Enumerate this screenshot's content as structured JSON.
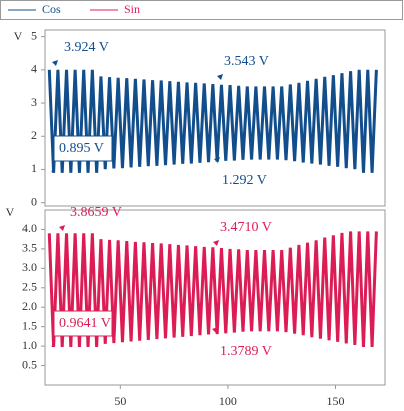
{
  "chart_data": [
    {
      "type": "line",
      "ylabel": "V",
      "xlim": [
        15,
        173
      ],
      "ylim": [
        -0.1,
        5.2
      ],
      "yticks": [
        0,
        1,
        2,
        3,
        4,
        5
      ],
      "x": [
        17,
        19,
        21,
        23,
        25,
        27,
        29,
        31,
        33,
        35,
        37,
        39,
        41,
        43,
        45,
        47,
        49,
        51,
        53,
        55,
        57,
        59,
        61,
        63,
        65,
        67,
        69,
        71,
        73,
        75,
        77,
        79,
        81,
        83,
        85,
        87,
        89,
        91,
        93,
        95,
        97,
        99,
        101,
        103,
        105,
        107,
        109,
        111,
        113,
        115,
        117,
        119,
        121,
        123,
        125,
        127,
        129,
        131,
        133,
        135,
        137,
        139,
        141,
        143,
        145,
        147,
        149,
        151,
        153,
        155,
        157,
        159,
        161,
        163,
        165,
        167,
        169
      ],
      "series": [
        {
          "name": "Cos",
          "color": "#124e8c",
          "values": [
            4.0,
            0.9,
            4.0,
            0.9,
            4.0,
            0.9,
            4.0,
            0.9,
            4.0,
            0.9,
            4.0,
            0.9,
            3.8,
            1.01,
            3.78,
            1.03,
            3.76,
            1.04,
            3.75,
            1.06,
            3.73,
            1.08,
            3.71,
            1.1,
            3.69,
            1.11,
            3.68,
            1.13,
            3.66,
            1.15,
            3.64,
            1.17,
            3.62,
            1.18,
            3.61,
            1.2,
            3.59,
            1.22,
            3.57,
            1.24,
            3.55,
            1.26,
            3.54,
            1.27,
            3.52,
            1.29,
            3.5,
            1.3,
            3.5,
            1.3,
            3.5,
            1.3,
            3.5,
            1.3,
            3.5,
            1.28,
            3.56,
            1.25,
            3.61,
            1.21,
            3.67,
            1.18,
            3.73,
            1.15,
            3.79,
            1.11,
            3.84,
            1.08,
            3.9,
            1.04,
            3.96,
            1.01,
            4.0,
            0.9,
            4.0,
            0.9,
            4.0
          ]
        }
      ],
      "annotations": [
        {
          "text": "3.924 V"
        },
        {
          "text": "3.543 V"
        },
        {
          "text": "1.292 V"
        },
        {
          "text": "0.895 V",
          "boxed": true
        }
      ]
    },
    {
      "type": "line",
      "ylabel": "V",
      "xlim": [
        15,
        173
      ],
      "ylim": [
        0,
        4.5
      ],
      "xticks": [
        50,
        100,
        150
      ],
      "yticks": [
        0.5,
        {
          "value": 1,
          "label": "1.0"
        },
        1.5,
        {
          "value": 2,
          "label": "2.0"
        },
        2.5,
        {
          "value": 3,
          "label": "3.0"
        },
        3.5,
        {
          "value": 4,
          "label": "4.0"
        }
      ],
      "x": [
        17,
        19,
        21,
        23,
        25,
        27,
        29,
        31,
        33,
        35,
        37,
        39,
        41,
        43,
        45,
        47,
        49,
        51,
        53,
        55,
        57,
        59,
        61,
        63,
        65,
        67,
        69,
        71,
        73,
        75,
        77,
        79,
        81,
        83,
        85,
        87,
        89,
        91,
        93,
        95,
        97,
        99,
        101,
        103,
        105,
        107,
        109,
        111,
        113,
        115,
        117,
        119,
        121,
        123,
        125,
        127,
        129,
        131,
        133,
        135,
        137,
        139,
        141,
        143,
        145,
        147,
        149,
        151,
        153,
        155,
        157,
        159,
        161,
        163,
        165,
        167,
        169
      ],
      "series": [
        {
          "name": "Sin",
          "color": "#dc1d55",
          "values": [
            3.9,
            0.98,
            3.9,
            0.98,
            3.9,
            0.98,
            3.9,
            0.98,
            3.9,
            0.98,
            3.9,
            0.98,
            3.75,
            1.06,
            3.73,
            1.08,
            3.72,
            1.1,
            3.7,
            1.12,
            3.68,
            1.14,
            3.67,
            1.16,
            3.65,
            1.18,
            3.64,
            1.2,
            3.62,
            1.22,
            3.6,
            1.24,
            3.59,
            1.26,
            3.57,
            1.28,
            3.55,
            1.3,
            3.54,
            1.31,
            3.52,
            1.33,
            3.5,
            1.35,
            3.49,
            1.37,
            3.47,
            1.38,
            3.47,
            1.38,
            3.47,
            1.38,
            3.47,
            1.38,
            3.47,
            1.36,
            3.53,
            1.32,
            3.6,
            1.28,
            3.66,
            1.23,
            3.72,
            1.19,
            3.79,
            1.15,
            3.85,
            1.11,
            3.91,
            1.07,
            3.95,
            1.03,
            3.95,
            0.98,
            3.95,
            0.98,
            3.95
          ]
        }
      ],
      "annotations": [
        {
          "text": "3.8659 V"
        },
        {
          "text": "3.4710 V"
        },
        {
          "text": "1.3789 V"
        },
        {
          "text": "0.9641 V",
          "boxed": true
        }
      ]
    }
  ]
}
